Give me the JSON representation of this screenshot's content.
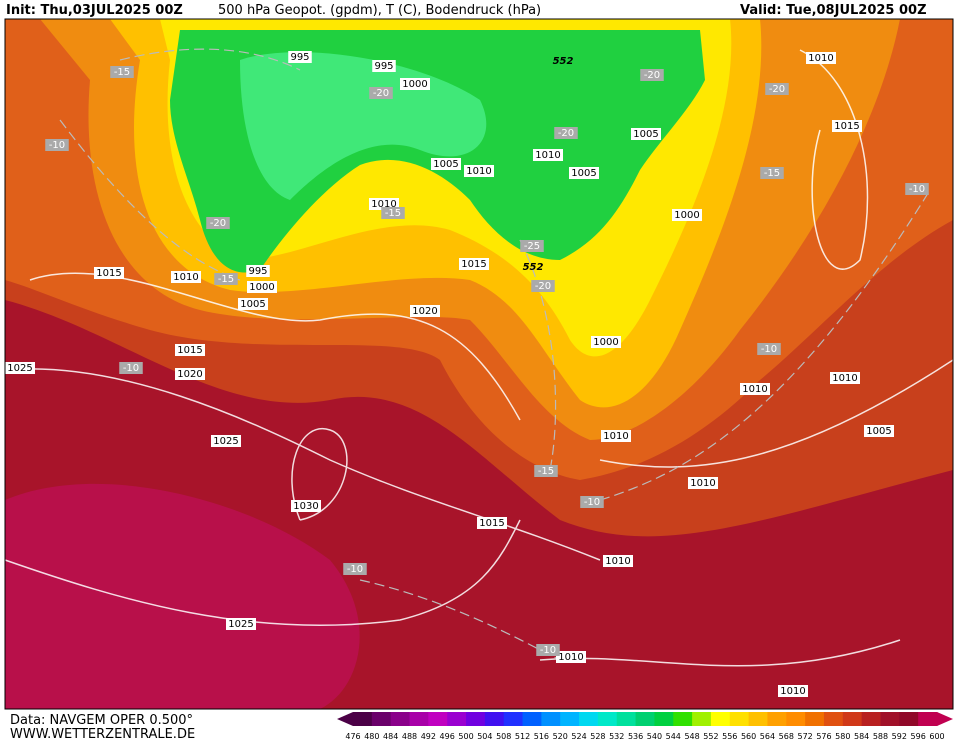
{
  "header": {
    "init": "Init: Thu,03JUL2025 00Z",
    "title": "500 hPa Geopot. (gpdm), T (C), Bodendruck (hPa)",
    "valid": "Valid: Tue,08JUL2025 00Z"
  },
  "footer": {
    "source": "Data: NAVGEM OPER 0.500°",
    "website": "WWW.WETTERZENTRALE.DE"
  },
  "colorbar": {
    "labels": [
      "476",
      "480",
      "484",
      "488",
      "492",
      "496",
      "500",
      "504",
      "508",
      "512",
      "516",
      "520",
      "524",
      "528",
      "532",
      "536",
      "540",
      "544",
      "548",
      "552",
      "556",
      "560",
      "564",
      "568",
      "572",
      "576",
      "580",
      "584",
      "588",
      "592",
      "596",
      "600"
    ],
    "colors": [
      "#4b0046",
      "#6a006a",
      "#8a008a",
      "#a800a8",
      "#c000c0",
      "#9a00d0",
      "#7000e0",
      "#4010f0",
      "#2030ff",
      "#0060ff",
      "#0090ff",
      "#00b4ff",
      "#00d8f0",
      "#00e8c8",
      "#00e09c",
      "#00d070",
      "#00d040",
      "#30e000",
      "#a0f000",
      "#ffff00",
      "#ffe000",
      "#ffc000",
      "#ffa000",
      "#ff8c00",
      "#f07000",
      "#e05010",
      "#d03818",
      "#b82020",
      "#a01028",
      "#900828",
      "#c00050"
    ]
  },
  "isobar_labels": [
    "995",
    "995",
    "1000",
    "1005",
    "1010",
    "1010",
    "1005",
    "1005",
    "1010",
    "1015",
    "1010",
    "1000",
    "1015",
    "1015",
    "1010",
    "995",
    "1000",
    "1005",
    "1020",
    "1000",
    "1015",
    "1025",
    "1020",
    "1010",
    "1010",
    "1025",
    "1010",
    "1005",
    "1030",
    "1010",
    "1015",
    "1010",
    "1025",
    "1010",
    "1010"
  ],
  "temperature_labels": [
    "-15",
    "-10",
    "-20",
    "-20",
    "-20",
    "-20",
    "-15",
    "-10",
    "-15",
    "-20",
    "-25",
    "-20",
    "-15",
    "-10",
    "-10",
    "-15",
    "-10",
    "-10",
    "-10"
  ],
  "height_labels": [
    "552",
    "552"
  ]
}
